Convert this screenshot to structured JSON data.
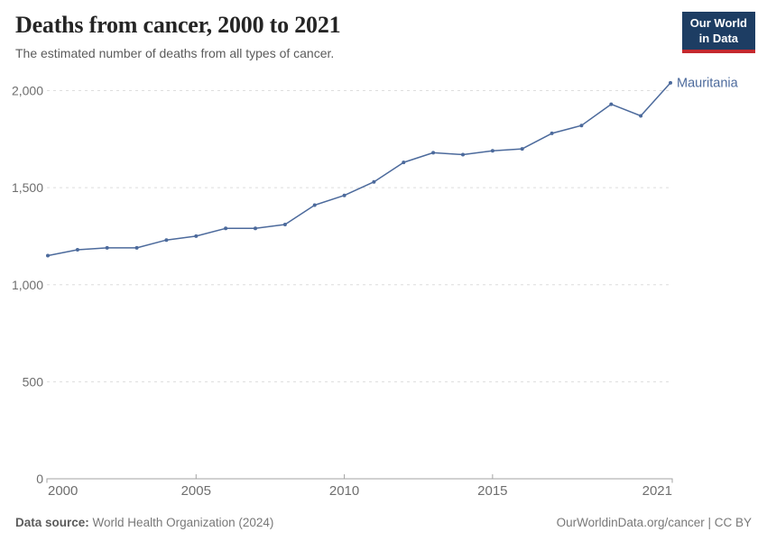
{
  "header": {
    "title": "Deaths from cancer, 2000 to 2021",
    "subtitle": "The estimated number of deaths from all types of cancer.",
    "logo": {
      "line1": "Our World",
      "line2": "in Data"
    }
  },
  "chart_data": {
    "type": "line",
    "title": "Deaths from cancer, 2000 to 2021",
    "subtitle": "The estimated number of deaths from all types of cancer.",
    "xlabel": "",
    "ylabel": "",
    "x": [
      2000,
      2001,
      2002,
      2003,
      2004,
      2005,
      2006,
      2007,
      2008,
      2009,
      2010,
      2011,
      2012,
      2013,
      2014,
      2015,
      2016,
      2017,
      2018,
      2019,
      2020,
      2021
    ],
    "series": [
      {
        "name": "Mauritania",
        "color": "#4c6a9c",
        "values": [
          1150,
          1180,
          1190,
          1190,
          1230,
          1250,
          1290,
          1290,
          1310,
          1410,
          1460,
          1530,
          1630,
          1680,
          1670,
          1690,
          1700,
          1780,
          1820,
          1930,
          1870,
          2040
        ]
      }
    ],
    "xlim": [
      2000,
      2021
    ],
    "ylim": [
      0,
      2000
    ],
    "x_ticks": [
      2000,
      2005,
      2010,
      2015,
      2021
    ],
    "y_ticks": [
      0,
      500,
      1000,
      1500,
      2000
    ],
    "grid": "horizontal-dashed",
    "legend": "end-of-line-label"
  },
  "footer": {
    "source_label": "Data source:",
    "source_value": "World Health Organization (2024)",
    "credit": "OurWorldinData.org/cancer | CC BY"
  },
  "colors": {
    "line": "#4c6a9c",
    "logo_navy": "#1d3d63",
    "logo_red": "#c5292e",
    "grid": "#dddddd",
    "axis": "#a3a3a3",
    "tick_label": "#6e6e6e",
    "series_label": "#4c6a9c"
  }
}
